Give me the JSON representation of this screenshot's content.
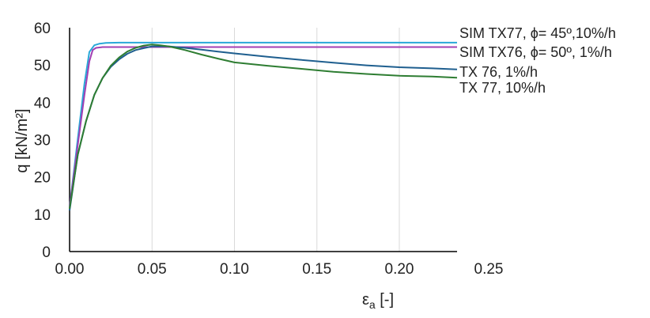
{
  "chart_data": {
    "type": "line",
    "xlabel": "εa [-]",
    "ylabel": "q [kN/m²]",
    "xlim": [
      0,
      0.25
    ],
    "ylim": [
      0,
      60
    ],
    "x_ticks": [
      0,
      0.05,
      0.1,
      0.15,
      0.2,
      0.25
    ],
    "x_tick_labels": [
      "0.00",
      "0.05",
      "0.10",
      "0.15",
      "0.20",
      "0.25"
    ],
    "y_ticks": [
      0,
      10,
      20,
      30,
      40,
      50,
      60
    ],
    "y_tick_labels": [
      "0",
      "10",
      "20",
      "30",
      "40",
      "50",
      "60"
    ],
    "grid": "vertical",
    "legend": "right-side labels",
    "series": [
      {
        "name": "SIM TX77, ϕ= 45º,10%/h",
        "color": "#29a8d8",
        "x": [
          0,
          0.003,
          0.006,
          0.009,
          0.012,
          0.015,
          0.018,
          0.022,
          0.03,
          0.05,
          0.1,
          0.15,
          0.2,
          0.25
        ],
        "y": [
          12,
          23,
          34,
          45,
          53.5,
          55.3,
          55.7,
          55.9,
          56,
          56,
          56,
          56,
          56,
          56
        ]
      },
      {
        "name": "SIM TX76, ϕ= 50º, 1%/h",
        "color": "#a23fb3",
        "x": [
          0,
          0.003,
          0.006,
          0.009,
          0.012,
          0.014,
          0.016,
          0.02,
          0.05,
          0.1,
          0.15,
          0.2,
          0.25
        ],
        "y": [
          12,
          22,
          32,
          42,
          51,
          54,
          54.6,
          54.8,
          54.8,
          54.8,
          54.8,
          54.8,
          54.8
        ]
      },
      {
        "name": "TX 76, 1%/h",
        "color": "#1f5f8f",
        "x": [
          0,
          0.005,
          0.01,
          0.015,
          0.02,
          0.025,
          0.03,
          0.035,
          0.04,
          0.045,
          0.05,
          0.055,
          0.06,
          0.07,
          0.08,
          0.09,
          0.1,
          0.12,
          0.14,
          0.16,
          0.18,
          0.2,
          0.22,
          0.25
        ],
        "y": [
          11,
          26,
          35,
          42,
          46.5,
          49.5,
          51.5,
          53,
          54,
          54.5,
          55,
          55,
          55,
          54.6,
          54.1,
          53.6,
          53.1,
          52.2,
          51.4,
          50.6,
          49.9,
          49.4,
          49.1,
          48.8
        ]
      },
      {
        "name": "TX 77, 10%/h",
        "color": "#2e7d32",
        "x": [
          0,
          0.005,
          0.01,
          0.015,
          0.02,
          0.025,
          0.03,
          0.035,
          0.04,
          0.045,
          0.05,
          0.055,
          0.06,
          0.065,
          0.07,
          0.08,
          0.09,
          0.1,
          0.12,
          0.14,
          0.16,
          0.18,
          0.2,
          0.22,
          0.25
        ],
        "y": [
          11.5,
          26,
          35,
          42,
          46.5,
          49.8,
          52,
          53.6,
          54.6,
          55.2,
          55.5,
          55.3,
          55,
          54.5,
          54,
          52.8,
          51.7,
          50.7,
          49.8,
          49,
          48.2,
          47.6,
          47.1,
          46.9,
          46.6
        ]
      }
    ]
  }
}
